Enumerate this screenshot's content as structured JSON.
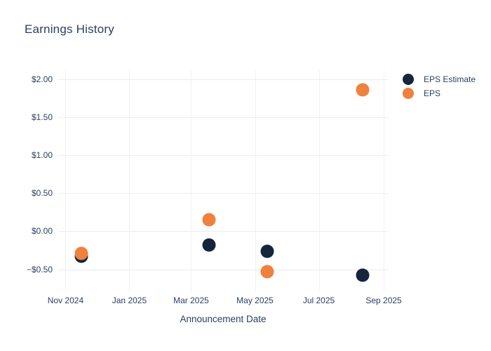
{
  "title": "Earnings History",
  "legend": [
    {
      "label": "EPS Estimate",
      "color": "#14253c"
    },
    {
      "label": "EPS",
      "color": "#f0803d"
    }
  ],
  "axes": {
    "x_title": "Announcement Date",
    "x_range": [
      "2024-10-25",
      "2025-09-05"
    ],
    "y_range": [
      -0.79,
      2.12
    ],
    "x_ticks": [
      {
        "label": "Nov 2024",
        "date": "2024-11-01"
      },
      {
        "label": "Jan 2025",
        "date": "2025-01-01"
      },
      {
        "label": "Mar 2025",
        "date": "2025-03-01"
      },
      {
        "label": "May 2025",
        "date": "2025-05-01"
      },
      {
        "label": "Jul 2025",
        "date": "2025-07-01"
      },
      {
        "label": "Sep 2025",
        "date": "2025-09-01"
      }
    ],
    "y_ticks": [
      {
        "label": "$2.00",
        "value": 2.0
      },
      {
        "label": "$1.50",
        "value": 1.5
      },
      {
        "label": "$1.00",
        "value": 1.0
      },
      {
        "label": "$0.50",
        "value": 0.5
      },
      {
        "label": "$0.00",
        "value": 0.0
      },
      {
        "label": "−$0.50",
        "value": -0.5
      }
    ]
  },
  "chart_data": {
    "type": "scatter",
    "title": "Earnings History",
    "xlabel": "Announcement Date",
    "ylabel": "",
    "x": [
      "2024-11-16",
      "2025-03-18",
      "2025-05-13",
      "2025-08-12"
    ],
    "series": [
      {
        "name": "EPS Estimate",
        "color": "#14253c",
        "values": [
          -0.33,
          -0.18,
          -0.26,
          -0.58
        ]
      },
      {
        "name": "EPS",
        "color": "#f0803d",
        "values": [
          -0.29,
          0.15,
          -0.53,
          1.86
        ]
      }
    ],
    "ylim": [
      -0.79,
      2.12
    ],
    "grid": true,
    "legend_position": "top-right",
    "marker_shape": "circle"
  }
}
